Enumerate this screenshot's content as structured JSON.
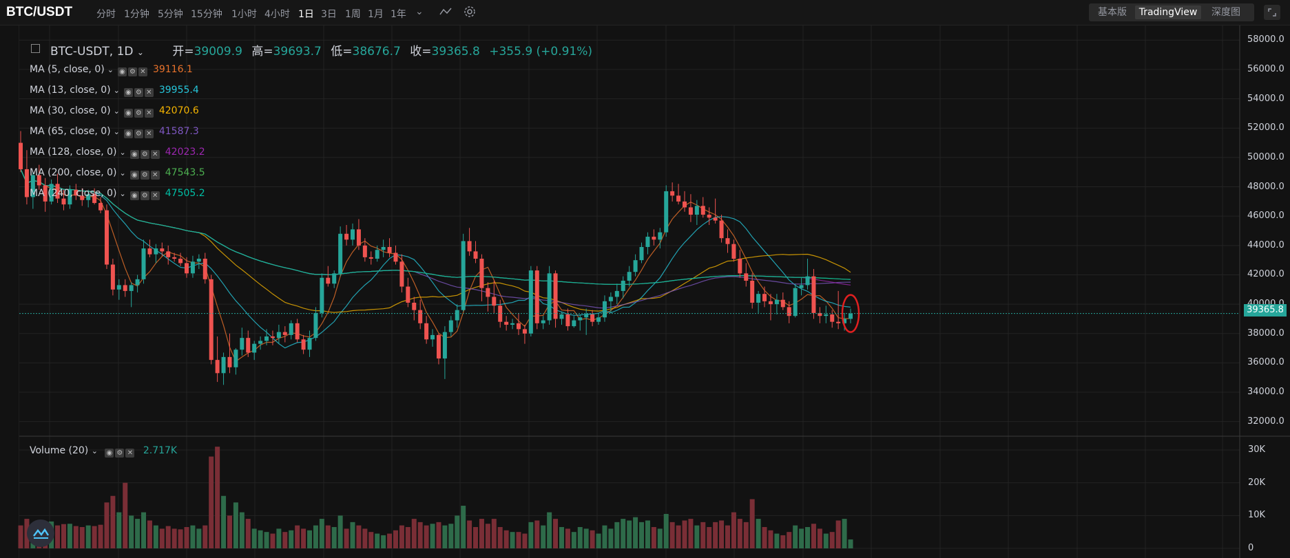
{
  "app": {
    "pair": "BTC/USDT",
    "intervals": [
      "分时",
      "1分钟",
      "5分钟",
      "15分钟",
      "1小时",
      "4小时",
      "1日",
      "3日",
      "1周",
      "1月",
      "1年"
    ],
    "active_interval": "1日",
    "views": [
      "基本版",
      "TradingView",
      "深度图"
    ],
    "active_view": "TradingView"
  },
  "legend": {
    "symbol": "BTC-USDT, 1D",
    "open_label": "开=",
    "open": "39009.9",
    "high_label": "高=",
    "high": "39693.7",
    "low_label": "低=",
    "low": "38676.7",
    "close_label": "收=",
    "close": "39365.8",
    "change": "+355.9 (+0.91%)"
  },
  "indicators": [
    {
      "name": "MA (5, close, 0)",
      "value": "39116.1",
      "color": "#e8722b"
    },
    {
      "name": "MA (13, close, 0)",
      "value": "39955.4",
      "color": "#26c6da"
    },
    {
      "name": "MA (30, close, 0)",
      "value": "42070.6",
      "color": "#f5b400"
    },
    {
      "name": "MA (65, close, 0)",
      "value": "41587.3",
      "color": "#7e57c2"
    },
    {
      "name": "MA (128, close, 0)",
      "value": "42023.2",
      "color": "#9c27b0"
    },
    {
      "name": "MA (200, close, 0)",
      "value": "47543.5",
      "color": "#4caf50"
    },
    {
      "name": "MA (240, close, 0)",
      "value": "47505.2",
      "color": "#00bfa5"
    }
  ],
  "volume": {
    "name": "Volume (20)",
    "value": "2.717K"
  },
  "price_axis": [
    "58000.0",
    "56000.0",
    "54000.0",
    "52000.0",
    "50000.0",
    "48000.0",
    "46000.0",
    "44000.0",
    "42000.0",
    "40000.0",
    "38000.0",
    "36000.0",
    "34000.0",
    "32000.0"
  ],
  "volume_axis": [
    "30K",
    "20K",
    "10K",
    "0"
  ],
  "current_price": "39365.8",
  "colors": {
    "up": "#26a69a",
    "down": "#ef5350",
    "background": "#121212",
    "grid": "#232323"
  },
  "chart_data": {
    "type": "candlestick",
    "price_range": [
      31000,
      59000
    ],
    "volume_range": [
      0,
      30000
    ],
    "candles": [
      [
        51000,
        51800,
        49000,
        49200,
        7000
      ],
      [
        49200,
        50500,
        46800,
        47300,
        9000
      ],
      [
        47300,
        49000,
        46500,
        48800,
        7500
      ],
      [
        48800,
        49500,
        47800,
        48100,
        7200
      ],
      [
        48100,
        48600,
        46300,
        47000,
        7000
      ],
      [
        47000,
        48500,
        46800,
        48200,
        8200
      ],
      [
        48200,
        48900,
        46900,
        47200,
        7000
      ],
      [
        47200,
        47800,
        46400,
        46800,
        7400
      ],
      [
        46800,
        48100,
        46500,
        47800,
        7500
      ],
      [
        47800,
        48200,
        47100,
        47400,
        6800
      ],
      [
        47400,
        47900,
        46700,
        47100,
        6500
      ],
      [
        47100,
        47800,
        46600,
        47500,
        7000
      ],
      [
        47500,
        47900,
        46800,
        46900,
        6800
      ],
      [
        46900,
        47300,
        46200,
        46400,
        7200
      ],
      [
        46400,
        46800,
        42400,
        42700,
        14000
      ],
      [
        42700,
        43100,
        40600,
        41000,
        16000
      ],
      [
        41000,
        41700,
        40300,
        41300,
        11000
      ],
      [
        41300,
        41700,
        40500,
        40900,
        20000
      ],
      [
        40900,
        41500,
        39800,
        41300,
        10000
      ],
      [
        41300,
        42000,
        40800,
        41700,
        9000
      ],
      [
        41700,
        44400,
        41400,
        43800,
        11000
      ],
      [
        43800,
        44400,
        43200,
        43400,
        8500
      ],
      [
        43400,
        44100,
        42800,
        43800,
        7000
      ],
      [
        43800,
        44200,
        43300,
        43600,
        6000
      ],
      [
        43600,
        44000,
        42700,
        43200,
        6800
      ],
      [
        43200,
        43500,
        42900,
        43100,
        6000
      ],
      [
        43100,
        43500,
        42600,
        42800,
        5800
      ],
      [
        42800,
        43200,
        41800,
        42100,
        6500
      ],
      [
        42100,
        43300,
        41800,
        42900,
        7000
      ],
      [
        42900,
        43400,
        42400,
        43100,
        6000
      ],
      [
        43100,
        43500,
        41400,
        41700,
        7000
      ],
      [
        41700,
        42000,
        35900,
        36200,
        28000
      ],
      [
        36200,
        37800,
        34700,
        35300,
        31000
      ],
      [
        35300,
        36700,
        34500,
        36400,
        16000
      ],
      [
        36400,
        38000,
        35300,
        35700,
        10000
      ],
      [
        35700,
        37000,
        35200,
        36900,
        14000
      ],
      [
        36900,
        38400,
        36500,
        37700,
        11000
      ],
      [
        37700,
        38200,
        36400,
        36700,
        9000
      ],
      [
        36700,
        37500,
        36200,
        37300,
        6000
      ],
      [
        37300,
        37800,
        36900,
        37500,
        5500
      ],
      [
        37500,
        38300,
        37200,
        37800,
        5000
      ],
      [
        37800,
        38200,
        37200,
        37700,
        4500
      ],
      [
        37700,
        38600,
        37300,
        38100,
        6000
      ],
      [
        38100,
        38500,
        37400,
        37900,
        5000
      ],
      [
        37900,
        38900,
        37600,
        38700,
        5500
      ],
      [
        38700,
        39000,
        37400,
        37600,
        7000
      ],
      [
        37600,
        37900,
        36600,
        36900,
        6000
      ],
      [
        36900,
        38200,
        36400,
        37700,
        5500
      ],
      [
        37700,
        39800,
        37500,
        39400,
        7000
      ],
      [
        39400,
        42100,
        39100,
        41800,
        9000
      ],
      [
        41800,
        42600,
        41200,
        41400,
        7000
      ],
      [
        41400,
        42300,
        41100,
        42100,
        6500
      ],
      [
        42100,
        45300,
        41900,
        44800,
        10000
      ],
      [
        44800,
        45400,
        44000,
        44400,
        6000
      ],
      [
        44400,
        45500,
        44000,
        45100,
        8000
      ],
      [
        45100,
        45800,
        43700,
        44000,
        7000
      ],
      [
        44000,
        44500,
        42900,
        43200,
        6000
      ],
      [
        43200,
        43600,
        42700,
        43100,
        5000
      ],
      [
        43100,
        44000,
        42900,
        43700,
        4500
      ],
      [
        43700,
        44400,
        43200,
        43900,
        4000
      ],
      [
        43900,
        44500,
        43200,
        43500,
        4500
      ],
      [
        43500,
        44000,
        42700,
        42900,
        5500
      ],
      [
        42900,
        43400,
        40800,
        41200,
        7000
      ],
      [
        41200,
        41800,
        39800,
        40100,
        6500
      ],
      [
        40100,
        40500,
        38900,
        39600,
        9000
      ],
      [
        39600,
        40300,
        38300,
        38700,
        8000
      ],
      [
        38700,
        39200,
        37300,
        37600,
        7000
      ],
      [
        37600,
        38300,
        37100,
        37900,
        7500
      ],
      [
        37900,
        38000,
        35900,
        36300,
        8000
      ],
      [
        36300,
        38500,
        34900,
        38100,
        7000
      ],
      [
        38100,
        39200,
        37800,
        38900,
        7500
      ],
      [
        38900,
        40000,
        38400,
        39600,
        10000
      ],
      [
        39600,
        44800,
        39500,
        44300,
        13000
      ],
      [
        44300,
        45200,
        43300,
        43600,
        8500
      ],
      [
        43600,
        44300,
        42800,
        43100,
        6500
      ],
      [
        43100,
        43400,
        40200,
        41100,
        9000
      ],
      [
        41100,
        41500,
        39500,
        40500,
        7500
      ],
      [
        40500,
        41600,
        39400,
        39900,
        9000
      ],
      [
        39900,
        40300,
        38400,
        38800,
        6500
      ],
      [
        38800,
        39200,
        38200,
        38600,
        5500
      ],
      [
        38600,
        39000,
        38300,
        38700,
        5000
      ],
      [
        38700,
        39400,
        37900,
        38300,
        5000
      ],
      [
        38300,
        38600,
        37300,
        38000,
        4500
      ],
      [
        38000,
        42600,
        37800,
        42300,
        8000
      ],
      [
        42300,
        42600,
        38300,
        38700,
        8500
      ],
      [
        38700,
        39200,
        38300,
        38900,
        7000
      ],
      [
        38900,
        42600,
        38600,
        42100,
        11000
      ],
      [
        42100,
        42300,
        38400,
        39000,
        9000
      ],
      [
        39000,
        39500,
        38600,
        39300,
        6500
      ],
      [
        39300,
        39700,
        38200,
        38500,
        6000
      ],
      [
        38500,
        39200,
        38400,
        38900,
        5000
      ],
      [
        38900,
        39300,
        38200,
        39100,
        6500
      ],
      [
        39100,
        39700,
        37900,
        39300,
        6000
      ],
      [
        39300,
        39600,
        38500,
        38800,
        5500
      ],
      [
        38800,
        39400,
        38600,
        39100,
        4500
      ],
      [
        39100,
        40600,
        38800,
        40200,
        7000
      ],
      [
        40200,
        40800,
        39400,
        40500,
        6000
      ],
      [
        40500,
        41400,
        40000,
        40900,
        8000
      ],
      [
        40900,
        41900,
        40400,
        41600,
        9000
      ],
      [
        41600,
        42600,
        41200,
        42200,
        8500
      ],
      [
        42200,
        43400,
        41900,
        43000,
        9500
      ],
      [
        43000,
        44200,
        42800,
        43900,
        8000
      ],
      [
        43900,
        44900,
        43400,
        44600,
        8500
      ],
      [
        44600,
        45100,
        44000,
        44400,
        6500
      ],
      [
        44400,
        45200,
        43800,
        44900,
        6000
      ],
      [
        44900,
        48100,
        44600,
        47700,
        10500
      ],
      [
        47700,
        48300,
        47000,
        47400,
        8000
      ],
      [
        47400,
        48200,
        46800,
        47000,
        7000
      ],
      [
        47000,
        47700,
        46300,
        46600,
        8500
      ],
      [
        46600,
        47500,
        45600,
        46100,
        9000
      ],
      [
        46100,
        47100,
        45400,
        46700,
        7000
      ],
      [
        46700,
        47300,
        45900,
        46100,
        8000
      ],
      [
        46100,
        46600,
        45400,
        45900,
        6500
      ],
      [
        45900,
        47200,
        45500,
        45700,
        8000
      ],
      [
        45700,
        46100,
        44200,
        44500,
        8500
      ],
      [
        44500,
        45100,
        43500,
        44100,
        7000
      ],
      [
        44100,
        44400,
        42900,
        43100,
        11000
      ],
      [
        43100,
        43700,
        41800,
        42100,
        9000
      ],
      [
        42100,
        42800,
        41200,
        41600,
        8000
      ],
      [
        41600,
        42100,
        39700,
        40100,
        15000
      ],
      [
        40100,
        40900,
        39400,
        40700,
        9000
      ],
      [
        40700,
        41200,
        39800,
        40200,
        6500
      ],
      [
        40200,
        40700,
        38900,
        40000,
        5500
      ],
      [
        40000,
        40700,
        39300,
        40300,
        4500
      ],
      [
        40300,
        40800,
        39600,
        39800,
        4000
      ],
      [
        39800,
        40200,
        38700,
        39200,
        5000
      ],
      [
        39200,
        41400,
        39100,
        41100,
        7000
      ],
      [
        41100,
        41800,
        40600,
        41300,
        6000
      ],
      [
        41300,
        43100,
        41000,
        41900,
        6500
      ],
      [
        41900,
        42400,
        39000,
        39400,
        7500
      ],
      [
        39400,
        39800,
        38700,
        39200,
        6000
      ],
      [
        39200,
        39900,
        38700,
        39300,
        4500
      ],
      [
        39300,
        39600,
        38400,
        38800,
        5000
      ],
      [
        38800,
        40900,
        38300,
        38700,
        8500
      ],
      [
        38700,
        39400,
        38200,
        39000,
        9000
      ],
      [
        39000,
        39700,
        38700,
        39366,
        2717
      ]
    ]
  }
}
